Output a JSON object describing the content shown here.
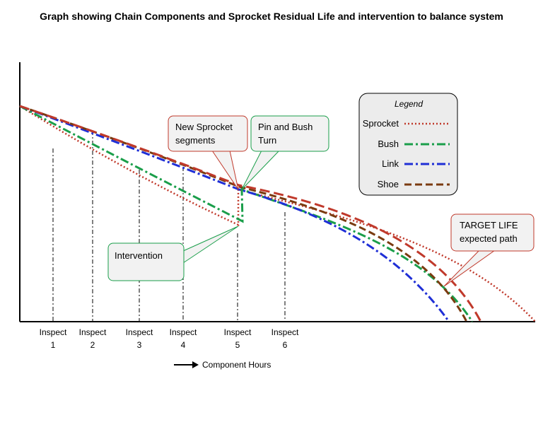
{
  "chart_data": {
    "type": "line",
    "title": "Graph showing Chain Components and Sprocket Residual Life and intervention to balance system",
    "xlabel": "Component Hours",
    "ylabel": "",
    "inspections": [
      {
        "line1": "Inspect",
        "line2": "1"
      },
      {
        "line1": "Inspect",
        "line2": "2"
      },
      {
        "line1": "Inspect",
        "line2": "3"
      },
      {
        "line1": "Inspect",
        "line2": "4"
      },
      {
        "line1": "Inspect",
        "line2": "5"
      },
      {
        "line1": "Inspect",
        "line2": "6"
      }
    ],
    "legend": {
      "title": "Legend",
      "placement": "top-right",
      "entries": [
        {
          "name": "Sprocket",
          "color": "#c0392b",
          "style": "dotted"
        },
        {
          "name": "Bush",
          "color": "#1a9e4a",
          "style": "dash-dot"
        },
        {
          "name": "Link",
          "color": "#1f2fd6",
          "style": "dash-dot"
        },
        {
          "name": "Shoe",
          "color": "#7a3b10",
          "style": "dashed"
        }
      ]
    },
    "series": [
      {
        "name": "Sprocket",
        "color": "#c0392b"
      },
      {
        "name": "Bush",
        "color": "#1a9e4a"
      },
      {
        "name": "Link",
        "color": "#1f2fd6"
      },
      {
        "name": "Shoe",
        "color": "#7a3b10"
      }
    ],
    "callouts": [
      {
        "id": "new-sprocket",
        "lines": [
          "New Sprocket",
          "segments"
        ],
        "border": "#c0392b"
      },
      {
        "id": "pin-bush",
        "lines": [
          "Pin and Bush",
          "Turn"
        ],
        "border": "#1a9e4a"
      },
      {
        "id": "intervention",
        "lines": [
          "Intervention"
        ],
        "border": "#1a9e4a"
      },
      {
        "id": "target-life",
        "lines": [
          "TARGET LIFE",
          "expected path"
        ],
        "border": "#c0392b"
      }
    ],
    "grid": false
  }
}
